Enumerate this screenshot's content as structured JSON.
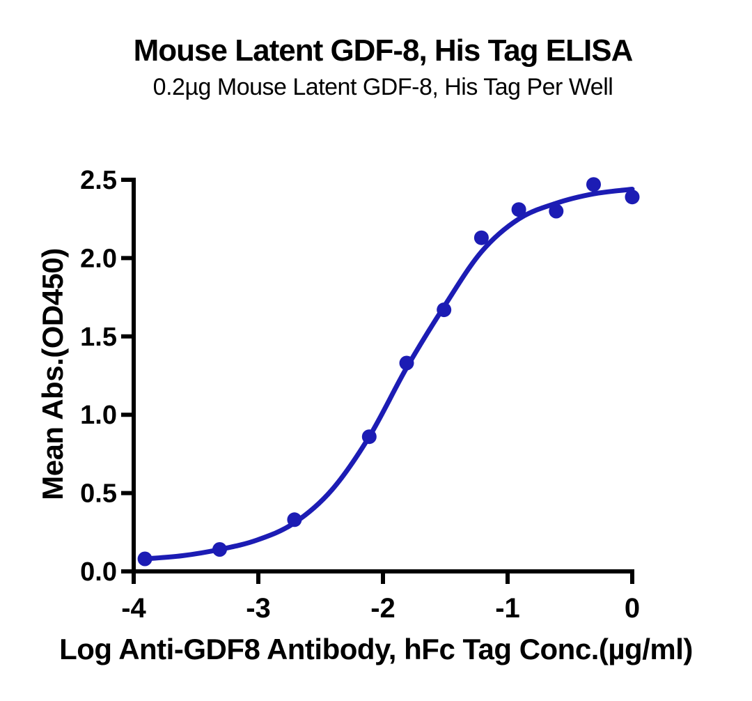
{
  "chart_data": {
    "type": "scatter",
    "title": "Mouse Latent GDF-8, His Tag ELISA",
    "subtitle": "0.2µg Mouse Latent GDF-8, His Tag Per Well",
    "xlabel": "Log Anti-GDF8 Antibody, hFc Tag Conc.(µg/ml)",
    "ylabel": "Mean Abs.(OD450)",
    "xlim": [
      -4,
      0
    ],
    "ylim": [
      0,
      2.5
    ],
    "grid": false,
    "legend": "none",
    "axis_color": "#000000",
    "x_ticks": {
      "values": [
        -4,
        -3,
        -2,
        -1,
        0
      ],
      "labels": [
        "-4",
        "-3",
        "-2",
        "-1",
        "0"
      ]
    },
    "y_ticks": {
      "values": [
        0,
        0.5,
        1.0,
        1.5,
        2.0,
        2.5
      ],
      "labels": [
        "0.0",
        "0.5",
        "1.0",
        "1.5",
        "2.0",
        "2.5"
      ]
    },
    "series": [
      {
        "name": "Anti-GDF8 Antibody, hFc Tag",
        "color": "#1C1CB4",
        "marker": "circle",
        "points": [
          {
            "x": -3.91,
            "y": 0.08
          },
          {
            "x": -3.31,
            "y": 0.14
          },
          {
            "x": -2.71,
            "y": 0.33
          },
          {
            "x": -2.11,
            "y": 0.86
          },
          {
            "x": -1.81,
            "y": 1.33
          },
          {
            "x": -1.51,
            "y": 1.67
          },
          {
            "x": -1.21,
            "y": 2.13
          },
          {
            "x": -0.91,
            "y": 2.31
          },
          {
            "x": -0.61,
            "y": 2.3
          },
          {
            "x": -0.31,
            "y": 2.47
          },
          {
            "x": 0.0,
            "y": 2.39
          }
        ],
        "fit_curve": [
          {
            "x": -3.91,
            "y": 0.08
          },
          {
            "x": -3.61,
            "y": 0.1
          },
          {
            "x": -3.31,
            "y": 0.14
          },
          {
            "x": -3.01,
            "y": 0.2
          },
          {
            "x": -2.71,
            "y": 0.31
          },
          {
            "x": -2.41,
            "y": 0.52
          },
          {
            "x": -2.11,
            "y": 0.86
          },
          {
            "x": -1.81,
            "y": 1.3
          },
          {
            "x": -1.51,
            "y": 1.69
          },
          {
            "x": -1.21,
            "y": 2.04
          },
          {
            "x": -0.91,
            "y": 2.25
          },
          {
            "x": -0.61,
            "y": 2.35
          },
          {
            "x": -0.31,
            "y": 2.41
          },
          {
            "x": 0.0,
            "y": 2.44
          }
        ]
      }
    ]
  }
}
